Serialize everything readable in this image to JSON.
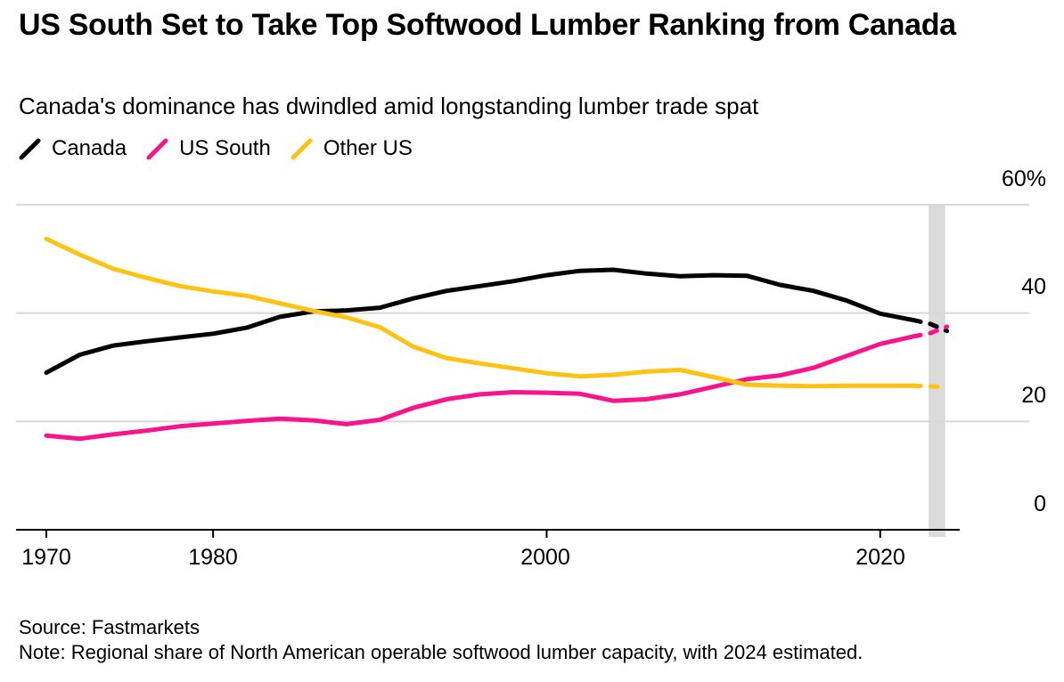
{
  "header": {
    "title": "US South Set to Take Top Softwood Lumber Ranking from Canada",
    "subtitle": "Canada's dominance has dwindled amid longstanding lumber trade spat"
  },
  "legend": [
    {
      "label": "Canada",
      "color": "#000000"
    },
    {
      "label": "US South",
      "color": "#FA148C"
    },
    {
      "label": "Other US",
      "color": "#FDC314"
    }
  ],
  "footer": {
    "source": "Source: Fastmarkets",
    "note": "Note: Regional share of North American operable softwood lumber capacity, with 2024 estimated."
  },
  "chart_data": {
    "type": "line",
    "title": "US South Set to Take Top Softwood Lumber Ranking from Canada",
    "subtitle": "Canada's dominance has dwindled amid longstanding lumber trade spat",
    "unit": "percent share",
    "grid": "horizontal",
    "legend_position": "top",
    "ylim": [
      0,
      60
    ],
    "yticks": [
      0,
      20,
      40,
      60
    ],
    "ytick_labels": [
      "0",
      "20",
      "40",
      "60%"
    ],
    "xticks": [
      1970,
      1980,
      2000,
      2020
    ],
    "xtick_labels": [
      "1970",
      "1980",
      "2000",
      "2020"
    ],
    "xlim": [
      1970,
      2024
    ],
    "solid_until": 2022,
    "estimated_band": {
      "from": 2022.9,
      "to": 2023.9,
      "meaning": "2024 estimated"
    },
    "x": [
      1970,
      1972,
      1974,
      1976,
      1978,
      1980,
      1982,
      1984,
      1986,
      1988,
      1990,
      1992,
      1994,
      1996,
      1998,
      2000,
      2002,
      2004,
      2006,
      2008,
      2010,
      2012,
      2014,
      2016,
      2018,
      2020,
      2022,
      2023,
      2024
    ],
    "series": [
      {
        "name": "Canada",
        "color": "#000000",
        "values": [
          29,
          32.3,
          34,
          34.8,
          35.5,
          36.2,
          37.3,
          39.3,
          40.3,
          40.5,
          41,
          42.7,
          44.1,
          45,
          45.9,
          47,
          47.8,
          48,
          47.3,
          46.8,
          47,
          46.9,
          45.2,
          44.1,
          42.3,
          39.9,
          38.7,
          38,
          36.7
        ]
      },
      {
        "name": "US South",
        "color": "#FA148C",
        "values": [
          17.4,
          16.8,
          17.6,
          18.3,
          19.1,
          19.6,
          20.1,
          20.5,
          20.2,
          19.5,
          20.3,
          22.5,
          24.1,
          25,
          25.4,
          25.3,
          25.1,
          23.8,
          24.1,
          25,
          26.4,
          27.8,
          28.5,
          29.9,
          32.1,
          34.3,
          35.7,
          36.3,
          37.5
        ]
      },
      {
        "name": "Other US",
        "color": "#FDC314",
        "values": [
          53.7,
          50.8,
          48.2,
          46.5,
          45,
          44,
          43.2,
          41.8,
          40.4,
          39.2,
          37.4,
          33.8,
          31.7,
          30.7,
          29.8,
          28.9,
          28.3,
          28.6,
          29.2,
          29.5,
          28.2,
          26.8,
          26.6,
          26.5,
          26.6,
          26.6,
          26.6,
          26.5,
          26.3
        ]
      }
    ],
    "colors": {
      "grid": "#D8D8D8",
      "band": "#DBDBDB",
      "axis": "#000000"
    }
  }
}
